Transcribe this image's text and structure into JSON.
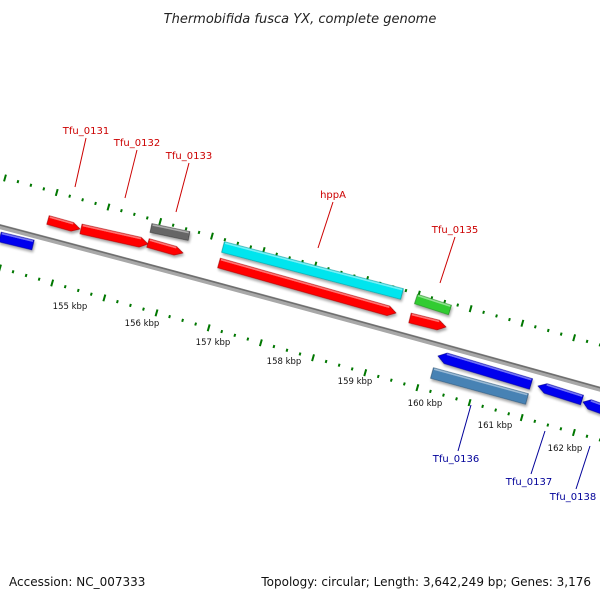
{
  "title": "Thermobifida fusca YX, complete genome",
  "footer": {
    "accession": "Accession: NC_007333",
    "summary": "Topology: circular; Length: 3,642,249 bp; Genes: 3,176"
  },
  "colors": {
    "label_forward": "#cc0000",
    "label_reverse": "#000099",
    "axis": "#808080",
    "ticks": "#007700"
  },
  "scale_labels": [
    "155 kbp",
    "156 kbp",
    "157 kbp",
    "158 kbp",
    "159 kbp",
    "160 kbp",
    "161 kbp",
    "162 kbp"
  ],
  "genes": [
    {
      "label": "Tfu_0131",
      "strand": "forward",
      "color": "#ff0000"
    },
    {
      "label": "Tfu_0132",
      "strand": "forward",
      "color": "#ff0000"
    },
    {
      "label": "Tfu_0133",
      "strand": "forward",
      "color": "#666666"
    },
    {
      "label": "hppA",
      "strand": "forward",
      "color": "#00e5ee"
    },
    {
      "label": "Tfu_0135",
      "strand": "forward",
      "color": "#33cc33"
    },
    {
      "label": "Tfu_0136",
      "strand": "reverse",
      "color": "#4682b4"
    },
    {
      "label": "Tfu_0137",
      "strand": "reverse",
      "color": "#0000ee"
    },
    {
      "label": "Tfu_0138",
      "strand": "reverse",
      "color": "#0000ee"
    }
  ]
}
